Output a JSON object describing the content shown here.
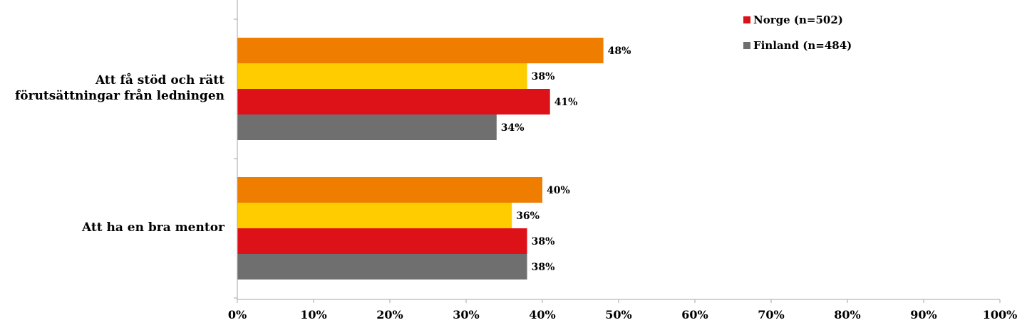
{
  "chart_data": {
    "type": "bar",
    "orientation": "horizontal",
    "categories": [
      "Att få stöd och rätt förutsättningar från ledningen",
      "Att ha en bra mentor"
    ],
    "category_lines": [
      [
        "Att få stöd och rätt",
        "förutsättningar från ledningen"
      ],
      [
        "Att ha en bra mentor"
      ]
    ],
    "series": [
      {
        "values": [
          48,
          40
        ],
        "color": "#ee7d00"
      },
      {
        "values": [
          38,
          36
        ],
        "color": "#ffcc00"
      },
      {
        "name": "Norge (n=502)",
        "values": [
          41,
          38
        ],
        "color": "#dd1118"
      },
      {
        "name": "Finland (n=484)",
        "values": [
          34,
          38
        ],
        "color": "#6f6f6f"
      }
    ],
    "data_labels": [
      [
        "48%",
        "40%"
      ],
      [
        "38%",
        "36%"
      ],
      [
        "41%",
        "38%"
      ],
      [
        "34%",
        "38%"
      ]
    ],
    "xlim": [
      0,
      100
    ],
    "x_ticks": [
      "0%",
      "10%",
      "20%",
      "30%",
      "40%",
      "50%",
      "60%",
      "70%",
      "80%",
      "90%",
      "100%"
    ],
    "grid": false,
    "legend_position": "top-right"
  }
}
